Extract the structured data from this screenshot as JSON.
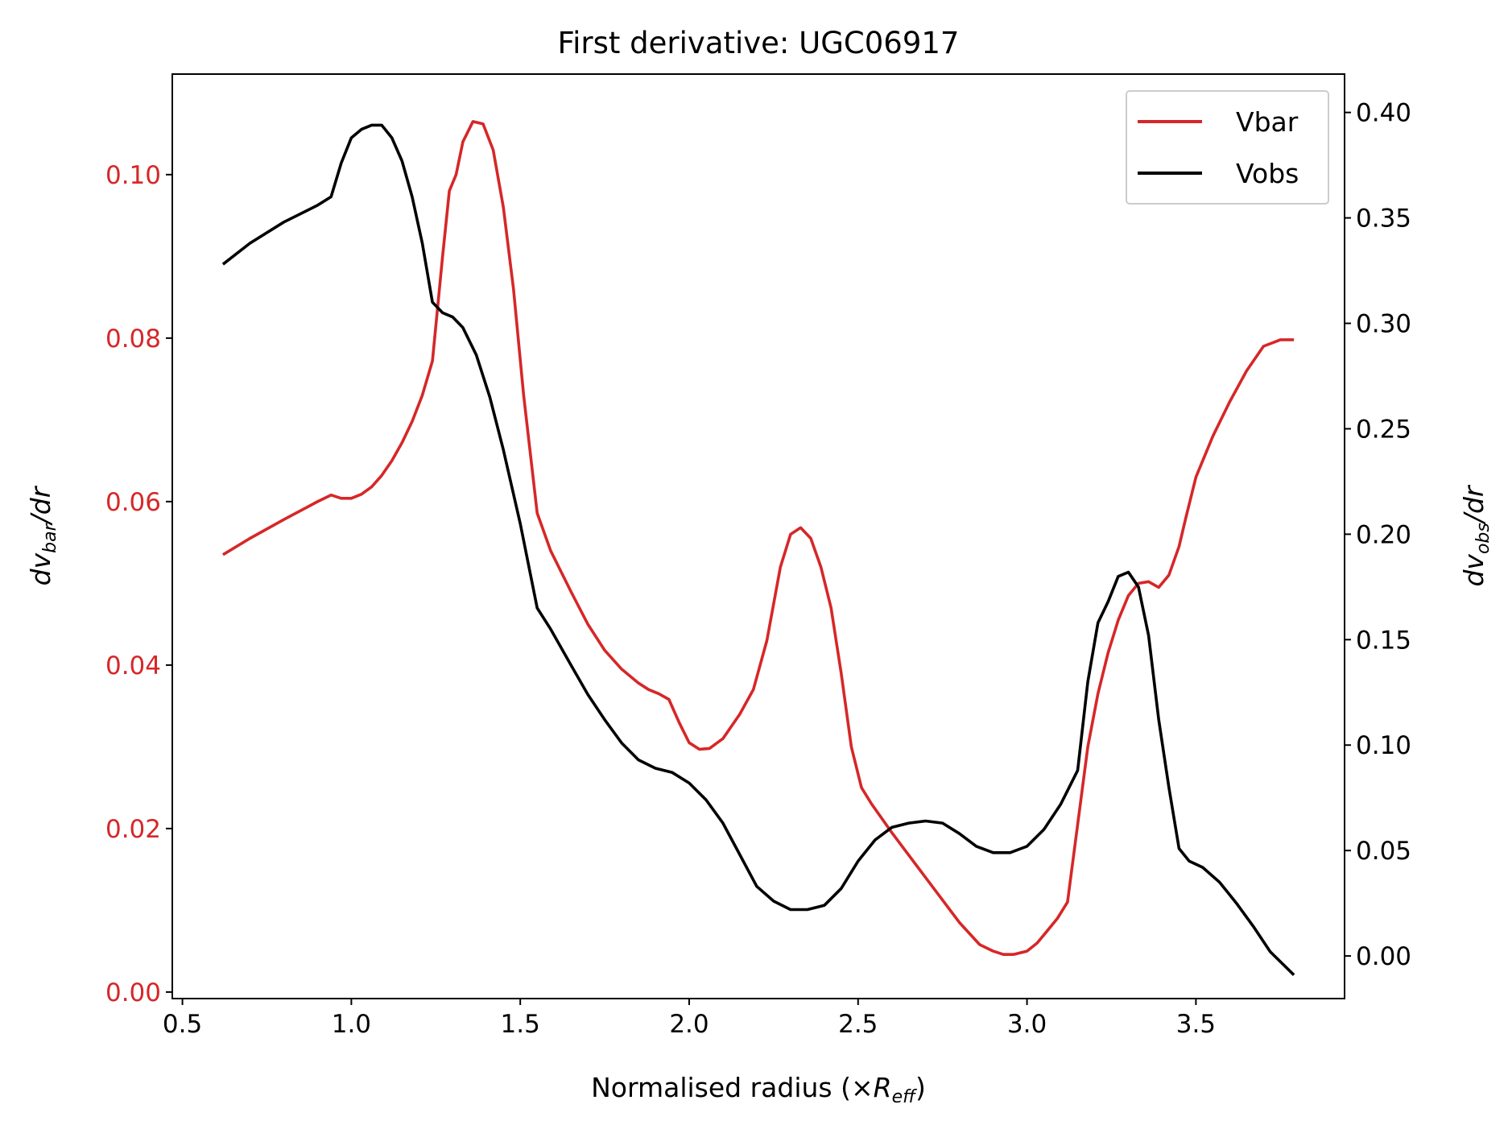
{
  "chart_data": {
    "type": "line",
    "title": "First derivative: UGC06917",
    "xlabel": "Normalised radius (×R_eff)",
    "xlabel_main": "Normalised radius (×",
    "xlabel_var": "R",
    "xlabel_sub": "eff",
    "xlabel_close": ")",
    "ylabel_left": "dv_bar/dr",
    "ylabel_left_main": "dv",
    "ylabel_left_sub": "bar",
    "ylabel_left_tail": "/dr",
    "ylabel_right": "dv_obs/dr",
    "ylabel_right_main": "dv",
    "ylabel_right_sub": "obs",
    "ylabel_right_tail": "/dr",
    "xlim": [
      0.47,
      3.94
    ],
    "ylim_left": [
      -0.0008,
      0.1123
    ],
    "ylim_right": [
      -0.0202,
      0.4182
    ],
    "xticks": [
      "0.5",
      "1.0",
      "1.5",
      "2.0",
      "2.5",
      "3.0",
      "3.5"
    ],
    "xtick_values": [
      0.5,
      1.0,
      1.5,
      2.0,
      2.5,
      3.0,
      3.5
    ],
    "yticks_left": [
      "0.00",
      "0.02",
      "0.04",
      "0.06",
      "0.08",
      "0.10"
    ],
    "ytick_left_values": [
      0.0,
      0.02,
      0.04,
      0.06,
      0.08,
      0.1
    ],
    "yticks_right": [
      "0.00",
      "0.05",
      "0.10",
      "0.15",
      "0.20",
      "0.25",
      "0.30",
      "0.35",
      "0.40"
    ],
    "ytick_right_values": [
      0.0,
      0.05,
      0.1,
      0.15,
      0.2,
      0.25,
      0.3,
      0.35,
      0.4
    ],
    "legend_position": "top-right",
    "grid": false,
    "series": [
      {
        "name": "Vbar",
        "axis": "left",
        "color": "#d62728",
        "x": [
          0.62,
          0.7,
          0.8,
          0.9,
          0.94,
          0.97,
          1.0,
          1.03,
          1.06,
          1.09,
          1.12,
          1.15,
          1.18,
          1.21,
          1.24,
          1.27,
          1.29,
          1.31,
          1.33,
          1.36,
          1.39,
          1.42,
          1.45,
          1.48,
          1.51,
          1.55,
          1.59,
          1.65,
          1.7,
          1.75,
          1.8,
          1.85,
          1.88,
          1.91,
          1.94,
          1.97,
          2.0,
          2.03,
          2.06,
          2.1,
          2.15,
          2.19,
          2.23,
          2.27,
          2.3,
          2.33,
          2.36,
          2.39,
          2.42,
          2.45,
          2.48,
          2.51,
          2.54,
          2.6,
          2.7,
          2.8,
          2.86,
          2.9,
          2.93,
          2.96,
          3.0,
          3.03,
          3.06,
          3.09,
          3.12,
          3.15,
          3.18,
          3.21,
          3.24,
          3.27,
          3.3,
          3.33,
          3.36,
          3.39,
          3.42,
          3.45,
          3.47,
          3.5,
          3.55,
          3.6,
          3.65,
          3.7,
          3.75,
          3.79
        ],
        "y": [
          0.0535,
          0.0555,
          0.0578,
          0.06,
          0.0608,
          0.0604,
          0.0604,
          0.0609,
          0.0618,
          0.0632,
          0.065,
          0.0672,
          0.0698,
          0.073,
          0.0772,
          0.09,
          0.098,
          0.1,
          0.104,
          0.1065,
          0.1062,
          0.103,
          0.096,
          0.086,
          0.073,
          0.0586,
          0.054,
          0.049,
          0.045,
          0.0418,
          0.0395,
          0.0378,
          0.037,
          0.0365,
          0.0358,
          0.033,
          0.0305,
          0.0297,
          0.0298,
          0.031,
          0.034,
          0.037,
          0.043,
          0.052,
          0.056,
          0.0568,
          0.0555,
          0.052,
          0.047,
          0.039,
          0.03,
          0.025,
          0.023,
          0.0195,
          0.014,
          0.0085,
          0.0058,
          0.005,
          0.0046,
          0.0046,
          0.005,
          0.006,
          0.0075,
          0.009,
          0.011,
          0.0205,
          0.03,
          0.0365,
          0.0415,
          0.0455,
          0.0485,
          0.05,
          0.0502,
          0.0495,
          0.051,
          0.0545,
          0.058,
          0.063,
          0.068,
          0.0722,
          0.076,
          0.079,
          0.0798,
          0.0798
        ]
      },
      {
        "name": "Vobs",
        "axis": "right",
        "color": "#000000",
        "x": [
          0.62,
          0.7,
          0.8,
          0.9,
          0.94,
          0.97,
          1.0,
          1.03,
          1.06,
          1.09,
          1.12,
          1.15,
          1.18,
          1.21,
          1.24,
          1.27,
          1.3,
          1.33,
          1.37,
          1.41,
          1.45,
          1.5,
          1.55,
          1.59,
          1.65,
          1.7,
          1.75,
          1.8,
          1.85,
          1.9,
          1.95,
          2.0,
          2.05,
          2.1,
          2.15,
          2.2,
          2.25,
          2.3,
          2.35,
          2.4,
          2.45,
          2.5,
          2.55,
          2.6,
          2.65,
          2.7,
          2.75,
          2.8,
          2.85,
          2.9,
          2.95,
          3.0,
          3.05,
          3.1,
          3.15,
          3.18,
          3.21,
          3.24,
          3.27,
          3.3,
          3.33,
          3.36,
          3.39,
          3.42,
          3.45,
          3.48,
          3.52,
          3.57,
          3.62,
          3.67,
          3.72,
          3.79
        ],
        "y": [
          0.328,
          0.338,
          0.348,
          0.356,
          0.36,
          0.376,
          0.388,
          0.392,
          0.394,
          0.394,
          0.388,
          0.377,
          0.36,
          0.338,
          0.31,
          0.305,
          0.303,
          0.298,
          0.285,
          0.265,
          0.24,
          0.205,
          0.165,
          0.155,
          0.138,
          0.124,
          0.112,
          0.101,
          0.093,
          0.089,
          0.087,
          0.082,
          0.074,
          0.063,
          0.048,
          0.033,
          0.026,
          0.022,
          0.022,
          0.024,
          0.032,
          0.045,
          0.055,
          0.061,
          0.063,
          0.064,
          0.063,
          0.058,
          0.052,
          0.049,
          0.049,
          0.052,
          0.06,
          0.072,
          0.088,
          0.13,
          0.158,
          0.168,
          0.18,
          0.182,
          0.175,
          0.152,
          0.112,
          0.08,
          0.051,
          0.045,
          0.042,
          0.035,
          0.025,
          0.014,
          0.002,
          -0.009
        ]
      }
    ]
  }
}
